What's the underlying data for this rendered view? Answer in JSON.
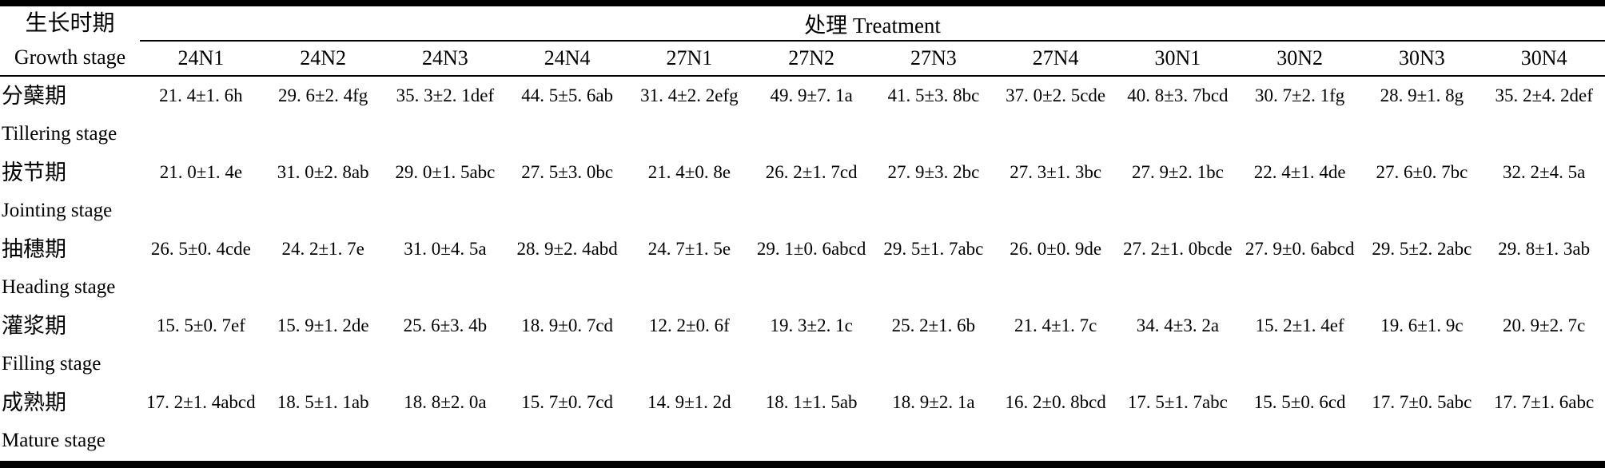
{
  "colors": {
    "text": "#000000",
    "background": "#ffffff",
    "rule": "#000000"
  },
  "table": {
    "header": {
      "row_group_cn": "生长时期",
      "row_group_en": "Growth stage",
      "treatment_group_label": "处理 Treatment",
      "columns": [
        "24N1",
        "24N2",
        "24N3",
        "24N4",
        "27N1",
        "27N2",
        "27N3",
        "27N4",
        "30N1",
        "30N2",
        "30N3",
        "30N4"
      ]
    },
    "rows": [
      {
        "stage_cn": "分蘖期",
        "stage_en": "Tillering stage",
        "values": [
          "21. 4±1. 6h",
          "29. 6±2. 4fg",
          "35. 3±2. 1def",
          "44. 5±5. 6ab",
          "31. 4±2. 2efg",
          "49. 9±7. 1a",
          "41. 5±3. 8bc",
          "37. 0±2. 5cde",
          "40. 8±3. 7bcd",
          "30. 7±2. 1fg",
          "28. 9±1. 8g",
          "35. 2±4. 2def"
        ]
      },
      {
        "stage_cn": "拔节期",
        "stage_en": "Jointing stage",
        "values": [
          "21. 0±1. 4e",
          "31. 0±2. 8ab",
          "29. 0±1. 5abc",
          "27. 5±3. 0bc",
          "21. 4±0. 8e",
          "26. 2±1. 7cd",
          "27. 9±3. 2bc",
          "27. 3±1. 3bc",
          "27. 9±2. 1bc",
          "22. 4±1. 4de",
          "27. 6±0. 7bc",
          "32. 2±4. 5a"
        ]
      },
      {
        "stage_cn": "抽穗期",
        "stage_en": "Heading stage",
        "values": [
          "26. 5±0. 4cde",
          "24. 2±1. 7e",
          "31. 0±4. 5a",
          "28. 9±2. 4abd",
          "24. 7±1. 5e",
          "29. 1±0. 6abcd",
          "29. 5±1. 7abc",
          "26. 0±0. 9de",
          "27. 2±1. 0bcde",
          "27. 9±0. 6abcd",
          "29. 5±2. 2abc",
          "29. 8±1. 3ab"
        ]
      },
      {
        "stage_cn": "灌浆期",
        "stage_en": "Filling stage",
        "values": [
          "15. 5±0. 7ef",
          "15. 9±1. 2de",
          "25. 6±3. 4b",
          "18. 9±0. 7cd",
          "12. 2±0. 6f",
          "19. 3±2. 1c",
          "25. 2±1. 6b",
          "21. 4±1. 7c",
          "34. 4±3. 2a",
          "15. 2±1. 4ef",
          "19. 6±1. 9c",
          "20. 9±2. 7c"
        ]
      },
      {
        "stage_cn": "成熟期",
        "stage_en": "Mature stage",
        "values": [
          "17. 2±1. 4abcd",
          "18. 5±1. 1ab",
          "18. 8±2. 0a",
          "15. 7±0. 7cd",
          "14. 9±1. 2d",
          "18. 1±1. 5ab",
          "18. 9±2. 1a",
          "16. 2±0. 8bcd",
          "17. 5±1. 7abc",
          "15. 5±0. 6cd",
          "17. 7±0. 5abc",
          "17. 7±1. 6abc"
        ]
      }
    ]
  }
}
